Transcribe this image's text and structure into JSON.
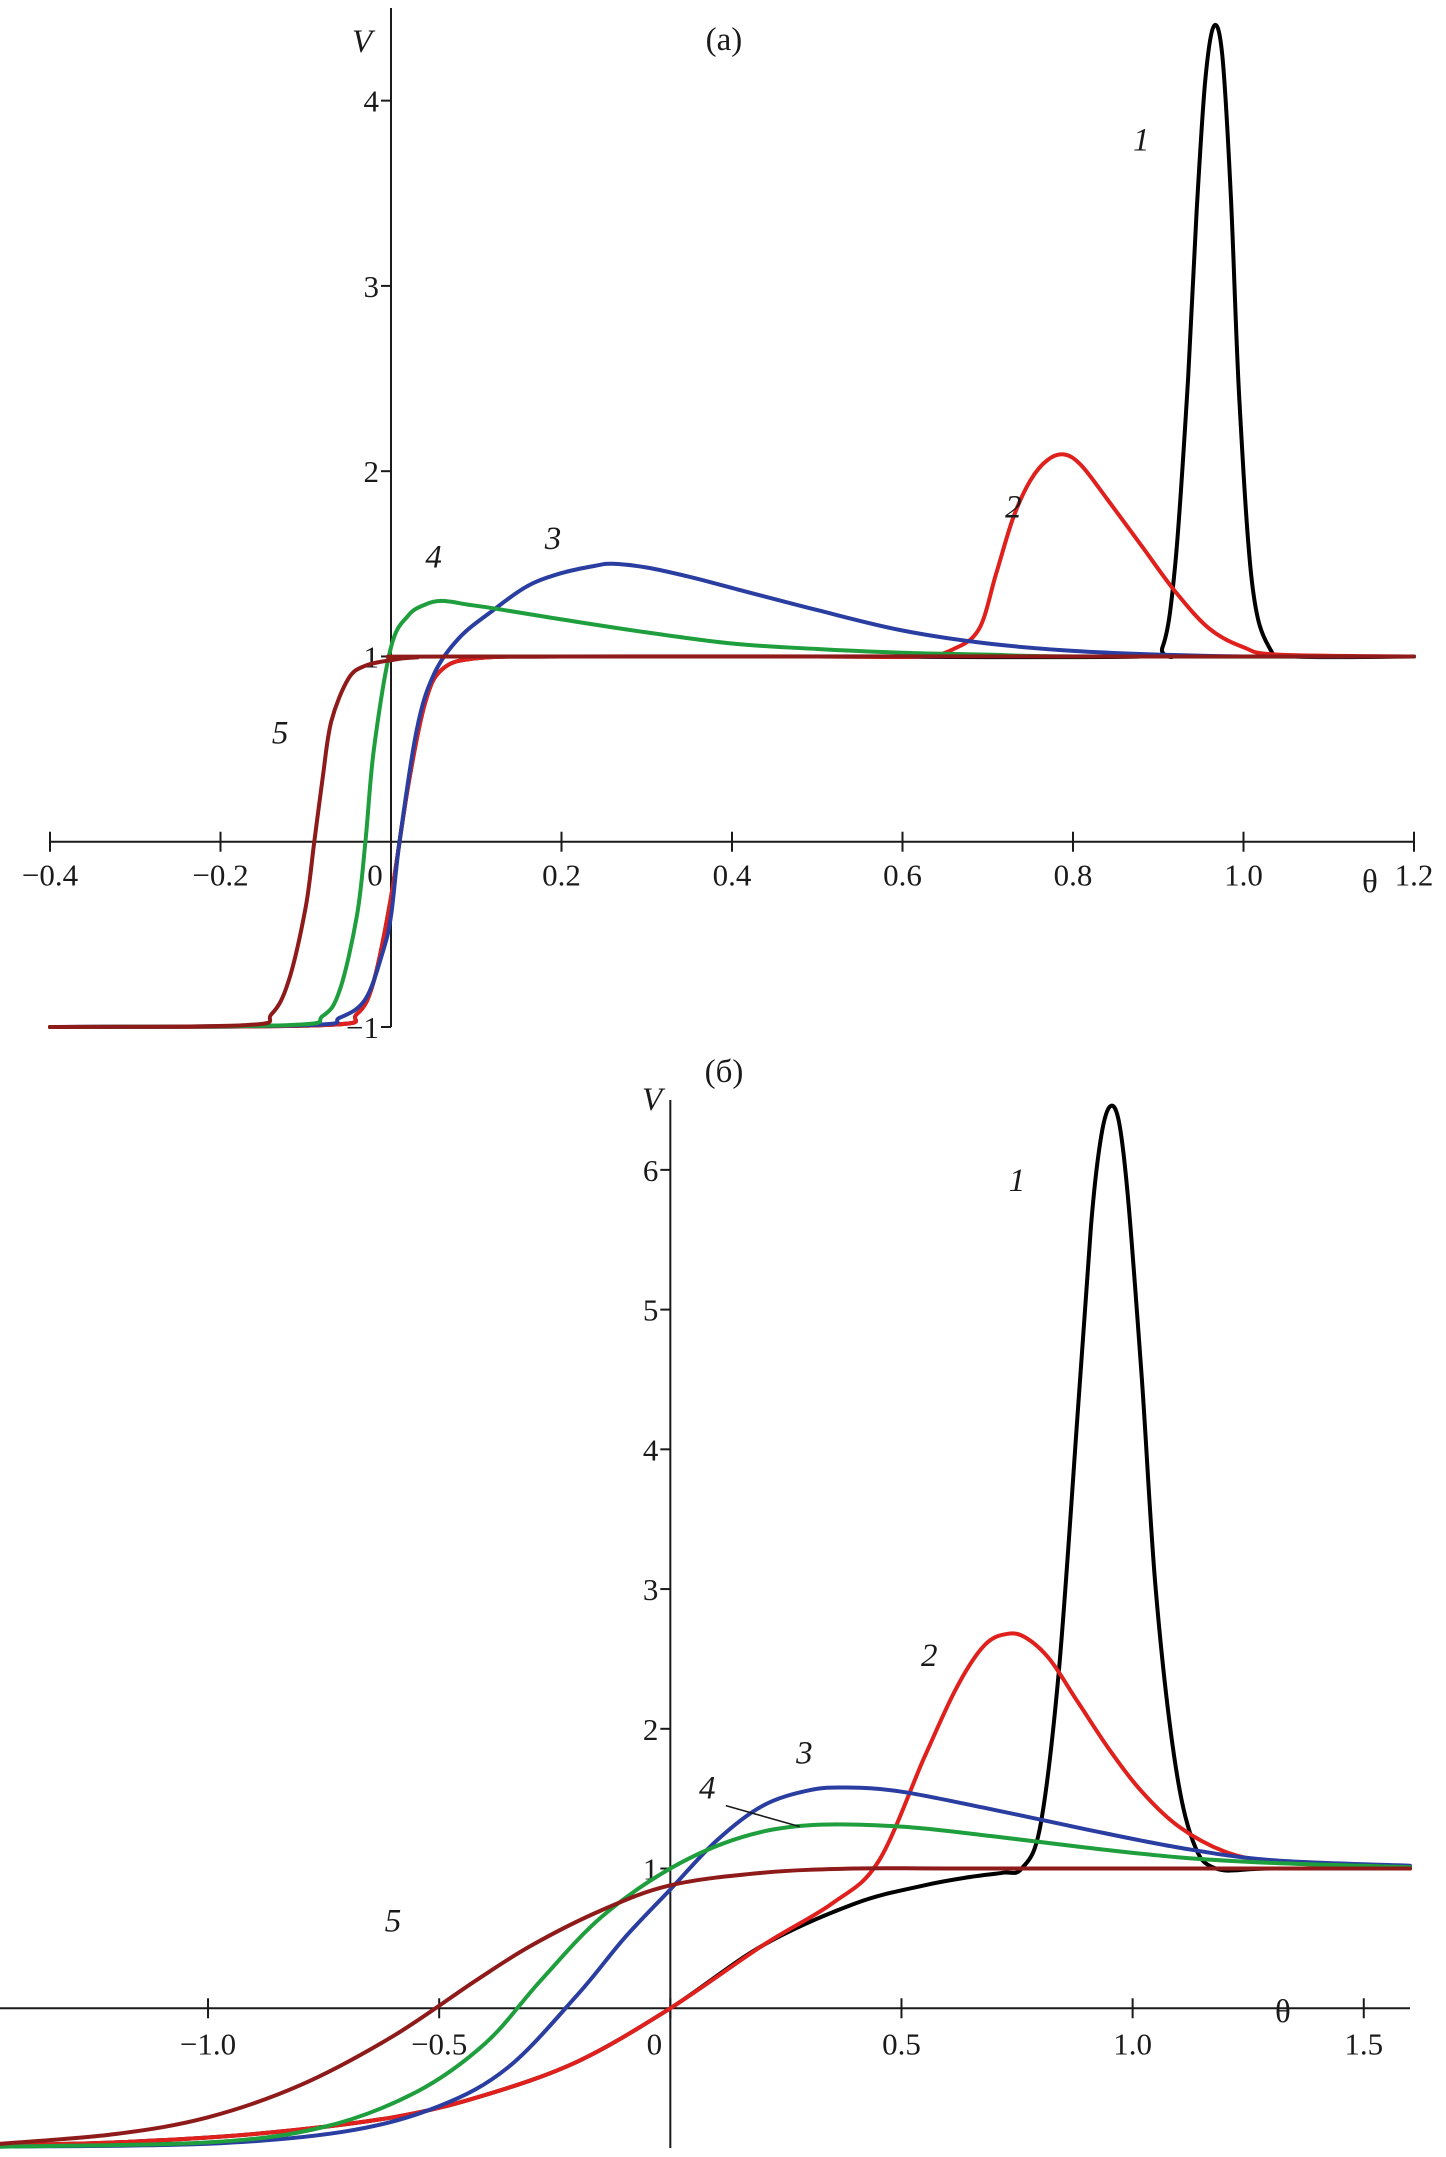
{
  "chart_data": [
    {
      "type": "line",
      "panel_label": "(a)",
      "xlabel": "θ",
      "ylabel": "V",
      "xlim": [
        -0.4,
        1.2
      ],
      "ylim": [
        -1,
        4.5
      ],
      "x_ticks": [
        -0.4,
        -0.2,
        0,
        0.2,
        0.4,
        0.6,
        0.8,
        1.0,
        1.2
      ],
      "x_tick_labels": [
        "−0.4",
        "−0.2",
        "0",
        "0.2",
        "0.4",
        "0.6",
        "0.8",
        "1.0",
        "1.2"
      ],
      "y_ticks": [
        -1,
        1,
        2,
        3,
        4
      ],
      "y_tick_labels": [
        "−1",
        "1",
        "2",
        "3",
        "4"
      ],
      "grid": false,
      "series": [
        {
          "name": "1",
          "color": "#000000",
          "x": [
            -0.4,
            -0.08,
            -0.04,
            -0.02,
            0.0,
            0.02,
            0.04,
            0.06,
            0.1,
            0.2,
            0.5,
            0.88,
            0.905,
            0.92,
            0.935,
            0.945,
            0.955,
            0.965,
            0.975,
            0.985,
            0.995,
            1.01,
            1.03,
            1.06,
            1.2
          ],
          "y": [
            -1,
            -0.99,
            -0.93,
            -0.75,
            -0.3,
            0.3,
            0.75,
            0.93,
            0.99,
            1.0,
            1.0,
            1.0,
            1.05,
            1.5,
            2.5,
            3.4,
            4.1,
            4.4,
            4.25,
            3.5,
            2.4,
            1.4,
            1.05,
            1.0,
            1.0
          ]
        },
        {
          "name": "2",
          "color": "#e0201c",
          "x": [
            -0.4,
            -0.08,
            -0.04,
            -0.02,
            0.0,
            0.02,
            0.04,
            0.06,
            0.1,
            0.2,
            0.5,
            0.62,
            0.66,
            0.69,
            0.71,
            0.73,
            0.75,
            0.77,
            0.79,
            0.81,
            0.84,
            0.88,
            0.92,
            0.96,
            1.0,
            1.04,
            1.2
          ],
          "y": [
            -1,
            -0.99,
            -0.93,
            -0.75,
            -0.3,
            0.3,
            0.75,
            0.93,
            0.99,
            1.0,
            1.0,
            1.0,
            1.04,
            1.15,
            1.45,
            1.75,
            1.95,
            2.06,
            2.09,
            2.03,
            1.85,
            1.6,
            1.35,
            1.15,
            1.05,
            1.01,
            1.0
          ]
        },
        {
          "name": "3",
          "color": "#2a3da0",
          "x": [
            -0.4,
            -0.1,
            -0.06,
            -0.03,
            -0.01,
            0.0,
            0.01,
            0.03,
            0.05,
            0.08,
            0.12,
            0.16,
            0.2,
            0.24,
            0.26,
            0.3,
            0.35,
            0.4,
            0.5,
            0.6,
            0.7,
            0.8,
            0.9,
            1.0,
            1.2
          ],
          "y": [
            -1,
            -0.99,
            -0.95,
            -0.85,
            -0.6,
            -0.4,
            0.0,
            0.6,
            0.9,
            1.1,
            1.25,
            1.38,
            1.45,
            1.49,
            1.5,
            1.48,
            1.43,
            1.37,
            1.25,
            1.14,
            1.07,
            1.03,
            1.01,
            1.0,
            1.0
          ]
        },
        {
          "name": "4",
          "color": "#1e9e3c",
          "x": [
            -0.4,
            -0.12,
            -0.08,
            -0.06,
            -0.04,
            -0.03,
            -0.02,
            0.0,
            0.02,
            0.04,
            0.06,
            0.09,
            0.12,
            0.2,
            0.3,
            0.4,
            0.5,
            0.6,
            0.7,
            0.8,
            1.2
          ],
          "y": [
            -1,
            -0.99,
            -0.94,
            -0.8,
            -0.4,
            0.0,
            0.5,
            1.05,
            1.22,
            1.28,
            1.3,
            1.28,
            1.26,
            1.2,
            1.13,
            1.07,
            1.04,
            1.02,
            1.01,
            1.0,
            1.0
          ]
        },
        {
          "name": "5",
          "color": "#8e1a1a",
          "x": [
            -0.4,
            -0.17,
            -0.14,
            -0.12,
            -0.1,
            -0.09,
            -0.08,
            -0.07,
            -0.05,
            -0.03,
            0.0,
            0.03,
            0.1,
            1.2
          ],
          "y": [
            -1,
            -0.99,
            -0.93,
            -0.75,
            -0.35,
            0.0,
            0.35,
            0.65,
            0.88,
            0.95,
            0.98,
            0.995,
            1.0,
            1.0
          ]
        }
      ],
      "annotations": [
        {
          "text": "1",
          "x": 0.88,
          "y": 3.73
        },
        {
          "text": "2",
          "x": 0.73,
          "y": 1.75
        },
        {
          "text": "3",
          "x": 0.19,
          "y": 1.58
        },
        {
          "text": "4",
          "x": 0.05,
          "y": 1.48
        },
        {
          "text": "5",
          "x": -0.13,
          "y": 0.53
        }
      ]
    },
    {
      "type": "line",
      "panel_label": "(б)",
      "xlabel": "θ",
      "ylabel": "V",
      "xlim": [
        -1.45,
        1.6
      ],
      "ylim": [
        -1,
        6.5
      ],
      "x_ticks": [
        -1.0,
        -0.5,
        0,
        0.5,
        1.0,
        1.5
      ],
      "x_tick_labels": [
        "−1.0",
        "−0.5",
        "0",
        "0.5",
        "1.0",
        "1.5"
      ],
      "y_ticks": [
        1,
        2,
        3,
        4,
        5,
        6
      ],
      "y_tick_labels": [
        "1",
        "2",
        "3",
        "4",
        "5",
        "6"
      ],
      "grid": false,
      "series": [
        {
          "name": "1",
          "color": "#000000",
          "x": [
            -1.45,
            -1.2,
            -0.9,
            -0.6,
            -0.4,
            -0.2,
            0.0,
            0.2,
            0.4,
            0.55,
            0.65,
            0.72,
            0.76,
            0.8,
            0.84,
            0.88,
            0.91,
            0.93,
            0.95,
            0.97,
            0.99,
            1.02,
            1.05,
            1.09,
            1.13,
            1.18,
            1.3,
            1.6
          ],
          "y": [
            -0.98,
            -0.96,
            -0.9,
            -0.78,
            -0.62,
            -0.38,
            0.0,
            0.45,
            0.75,
            0.88,
            0.94,
            0.97,
            1.0,
            1.3,
            2.4,
            4.2,
            5.6,
            6.2,
            6.45,
            6.35,
            5.8,
            4.5,
            3.0,
            1.8,
            1.2,
            1.0,
            1.0,
            1.0
          ]
        },
        {
          "name": "2",
          "color": "#e0201c",
          "x": [
            -1.45,
            -1.2,
            -0.9,
            -0.6,
            -0.4,
            -0.2,
            0.0,
            0.2,
            0.35,
            0.45,
            0.55,
            0.62,
            0.68,
            0.73,
            0.77,
            0.82,
            0.88,
            0.95,
            1.02,
            1.1,
            1.2,
            1.3,
            1.45,
            1.6
          ],
          "y": [
            -0.98,
            -0.96,
            -0.9,
            -0.78,
            -0.62,
            -0.38,
            0.0,
            0.45,
            0.75,
            1.05,
            1.8,
            2.3,
            2.6,
            2.68,
            2.65,
            2.5,
            2.2,
            1.85,
            1.55,
            1.3,
            1.12,
            1.05,
            1.02,
            1.0
          ]
        },
        {
          "name": "3",
          "color": "#2a3da0",
          "x": [
            -1.45,
            -1.0,
            -0.7,
            -0.5,
            -0.35,
            -0.2,
            -0.1,
            0.0,
            0.1,
            0.2,
            0.3,
            0.38,
            0.5,
            0.7,
            0.9,
            1.1,
            1.3,
            1.6
          ],
          "y": [
            -0.99,
            -0.97,
            -0.88,
            -0.7,
            -0.42,
            0.1,
            0.5,
            0.85,
            1.2,
            1.45,
            1.56,
            1.58,
            1.55,
            1.42,
            1.28,
            1.15,
            1.06,
            1.02
          ]
        },
        {
          "name": "4",
          "color": "#1e9e3c",
          "x": [
            -1.45,
            -1.0,
            -0.75,
            -0.55,
            -0.4,
            -0.28,
            -0.15,
            0.0,
            0.15,
            0.3,
            0.5,
            0.7,
            0.9,
            1.1,
            1.3,
            1.6
          ],
          "y": [
            -0.99,
            -0.96,
            -0.85,
            -0.6,
            -0.25,
            0.2,
            0.65,
            1.0,
            1.22,
            1.31,
            1.3,
            1.23,
            1.15,
            1.08,
            1.04,
            1.01
          ]
        },
        {
          "name": "5",
          "color": "#8e1a1a",
          "x": [
            -1.45,
            -1.2,
            -1.0,
            -0.8,
            -0.6,
            -0.42,
            -0.3,
            -0.15,
            0.0,
            0.2,
            0.4,
            0.6,
            1.0,
            1.6
          ],
          "y": [
            -0.97,
            -0.9,
            -0.78,
            -0.55,
            -0.2,
            0.2,
            0.45,
            0.7,
            0.88,
            0.97,
            1.0,
            1.0,
            1.0,
            1.0
          ]
        }
      ],
      "annotations": [
        {
          "text": "1",
          "x": 0.75,
          "y": 5.85
        },
        {
          "text": "2",
          "x": 0.56,
          "y": 2.45
        },
        {
          "text": "3",
          "x": 0.29,
          "y": 1.75
        },
        {
          "text": "4",
          "x": 0.08,
          "y": 1.5
        },
        {
          "text": "5",
          "x": -0.6,
          "y": 0.55
        }
      ]
    }
  ]
}
